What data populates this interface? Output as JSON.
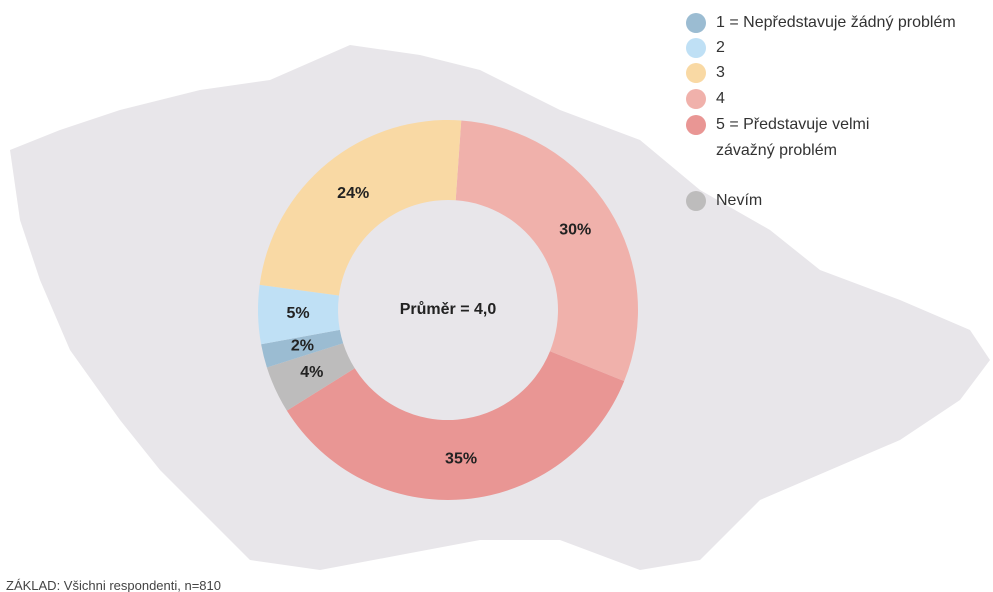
{
  "chart_data": {
    "type": "pie",
    "annotation": "Průměr = 4,0",
    "categories": [
      "1 = Nepředstavuje žádný problém",
      "2",
      "3",
      "4",
      "5 = Představuje velmi závažný problém",
      "Nevím"
    ],
    "values": [
      2,
      5,
      24,
      30,
      35,
      4
    ],
    "value_labels": [
      "2%",
      "5%",
      "24%",
      "30%",
      "35%",
      "4%"
    ],
    "colors": [
      "#9bbcd2",
      "#bfe0f5",
      "#f9d9a4",
      "#f0b1ab",
      "#e99694",
      "#bdbcbc"
    ],
    "footnote": "ZÁKLAD: Všichni respondenti, n=810"
  }
}
